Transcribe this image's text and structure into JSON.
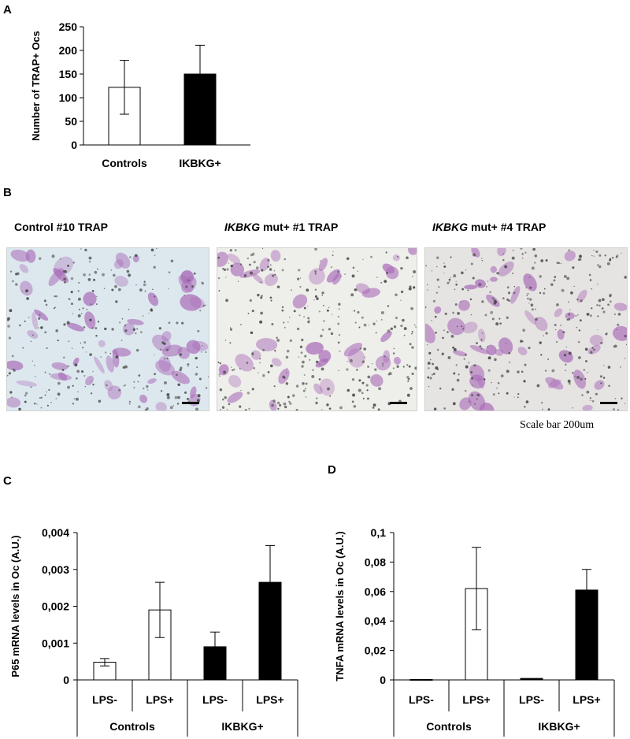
{
  "panels": {
    "a": {
      "letter": "A"
    },
    "b": {
      "letter": "B",
      "images": [
        {
          "pre": "Control #10 TRAP",
          "italic": "",
          "post": ""
        },
        {
          "pre": "",
          "italic": "IKBKG",
          "post": " mut+ #1 TRAP"
        },
        {
          "pre": "",
          "italic": "IKBKG",
          "post": " mut+ #4 TRAP"
        }
      ],
      "scale_label": "Scale bar 200um"
    },
    "c": {
      "letter": "C"
    },
    "d": {
      "letter": "D"
    }
  },
  "chart_data": [
    {
      "id": "A",
      "type": "bar",
      "categories": [
        "Controls",
        "IKBKG+"
      ],
      "values": [
        122,
        150
      ],
      "errors": [
        57,
        61
      ],
      "fills": [
        "#ffffff",
        "#000000"
      ],
      "ylabel": "Number of TRAP+ Ocs",
      "ylim": [
        0,
        250
      ],
      "yticks": [
        "0",
        "50",
        "100",
        "150",
        "200",
        "250"
      ],
      "ytick_values": [
        0,
        50,
        100,
        150,
        200,
        250
      ]
    },
    {
      "id": "C",
      "type": "bar",
      "categories": [
        "LPS-",
        "LPS+",
        "LPS-",
        "LPS+"
      ],
      "groups": [
        "Controls",
        "IKBKG+"
      ],
      "values": [
        0.00048,
        0.0019,
        0.0009,
        0.00265
      ],
      "errors": [
        0.0001,
        0.00075,
        0.0004,
        0.001
      ],
      "fills": [
        "#ffffff",
        "#ffffff",
        "#000000",
        "#000000"
      ],
      "ylabel": "P65 mRNA levels in Oc (A.U.)",
      "ylim": [
        0,
        0.004
      ],
      "yticks": [
        "0",
        "0,001",
        "0,002",
        "0,003",
        "0,004"
      ],
      "ytick_values": [
        0,
        0.001,
        0.002,
        0.003,
        0.004
      ]
    },
    {
      "id": "D",
      "type": "bar",
      "categories": [
        "LPS-",
        "LPS+",
        "LPS-",
        "LPS+"
      ],
      "groups": [
        "Controls",
        "IKBKG+"
      ],
      "values": [
        0.0003,
        0.062,
        0.001,
        0.061
      ],
      "errors": [
        0,
        0.028,
        0,
        0.014
      ],
      "fills": [
        "#ffffff",
        "#ffffff",
        "#000000",
        "#000000"
      ],
      "ylabel": "TNFA  mRNA levels in Oc (A.U.)",
      "ylim": [
        0,
        0.1
      ],
      "yticks": [
        "0",
        "0,02",
        "0,04",
        "0,06",
        "0,08",
        "0,1"
      ],
      "ytick_values": [
        0,
        0.02,
        0.04,
        0.06,
        0.08,
        0.1
      ]
    }
  ]
}
